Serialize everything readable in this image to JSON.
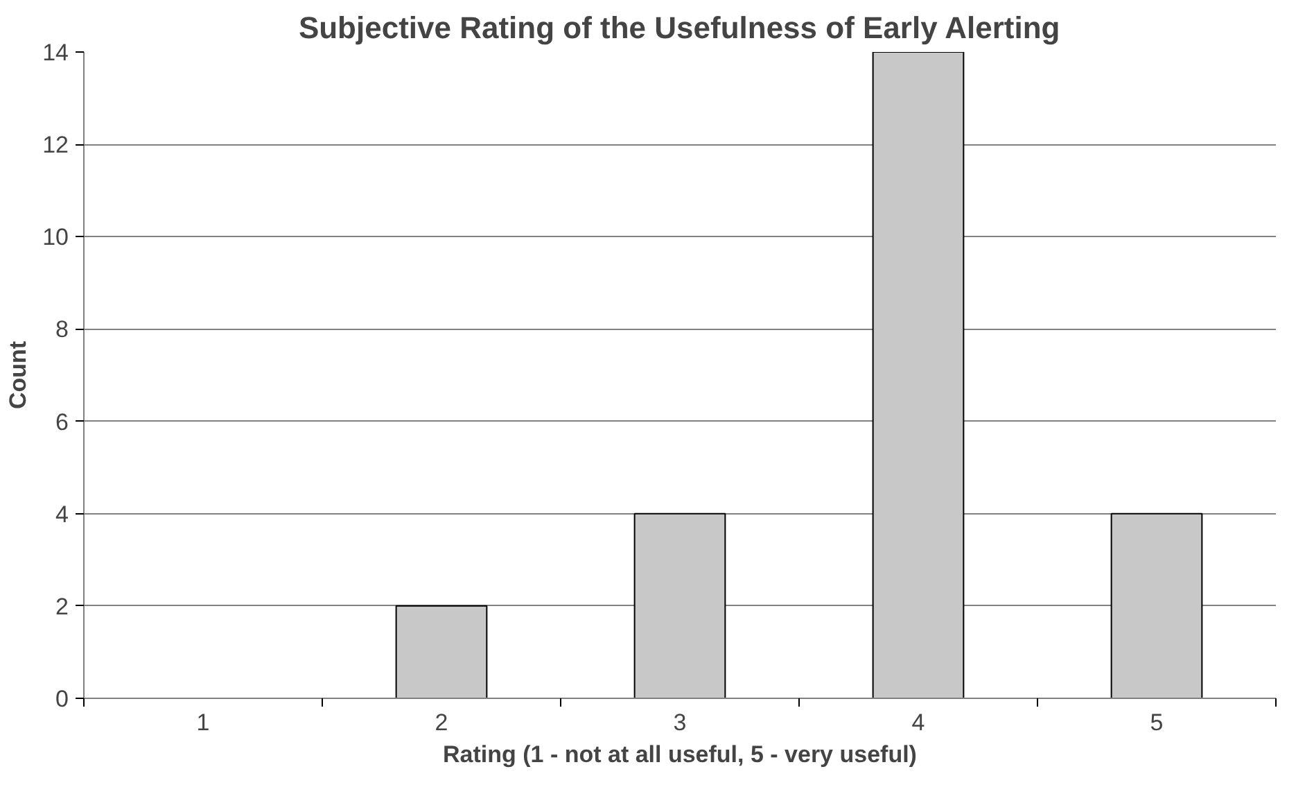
{
  "chart_data": {
    "type": "bar",
    "title": "Subjective Rating of the Usefulness of Early Alerting",
    "xlabel": "Rating (1 - not at all useful, 5 - very useful)",
    "ylabel": "Count",
    "categories": [
      "1",
      "2",
      "3",
      "4",
      "5"
    ],
    "values": [
      0,
      2,
      4,
      14,
      4
    ],
    "color": "#c8c8c8",
    "ylim": [
      0,
      14
    ],
    "yticks": [
      0,
      2,
      4,
      6,
      8,
      10,
      12,
      14
    ],
    "grid": "y"
  }
}
